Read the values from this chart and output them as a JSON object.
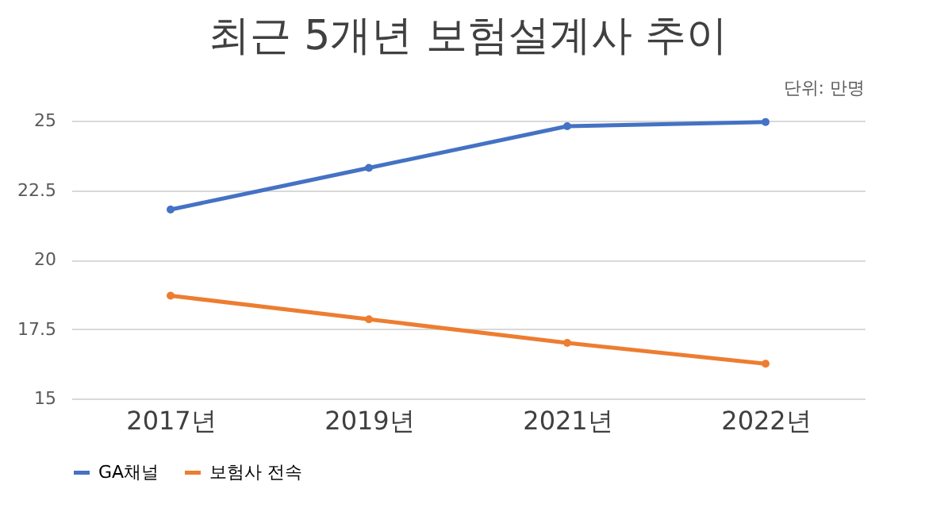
{
  "chart_data": {
    "type": "line",
    "title": "최근 5개년 보험설계사 추이",
    "annotations": [
      "단위: 만명"
    ],
    "categories": [
      "2017년",
      "2019년",
      "2021년",
      "2022년"
    ],
    "series": [
      {
        "name": "GA채널",
        "color": "#4472c4",
        "values": [
          21.8,
          23.3,
          24.8,
          24.95
        ]
      },
      {
        "name": "보험사 전속",
        "color": "#ed7d31",
        "values": [
          18.7,
          17.85,
          17.0,
          16.25
        ]
      }
    ],
    "ylim": [
      15,
      25
    ],
    "yticks": [
      15,
      {
        "value": 17.5,
        "label": "17.5"
      },
      20,
      {
        "value": 22.5,
        "label": "22.5"
      },
      25
    ],
    "grid": "y",
    "legend": "bottom",
    "marker": "circle",
    "line_style": "solid"
  }
}
